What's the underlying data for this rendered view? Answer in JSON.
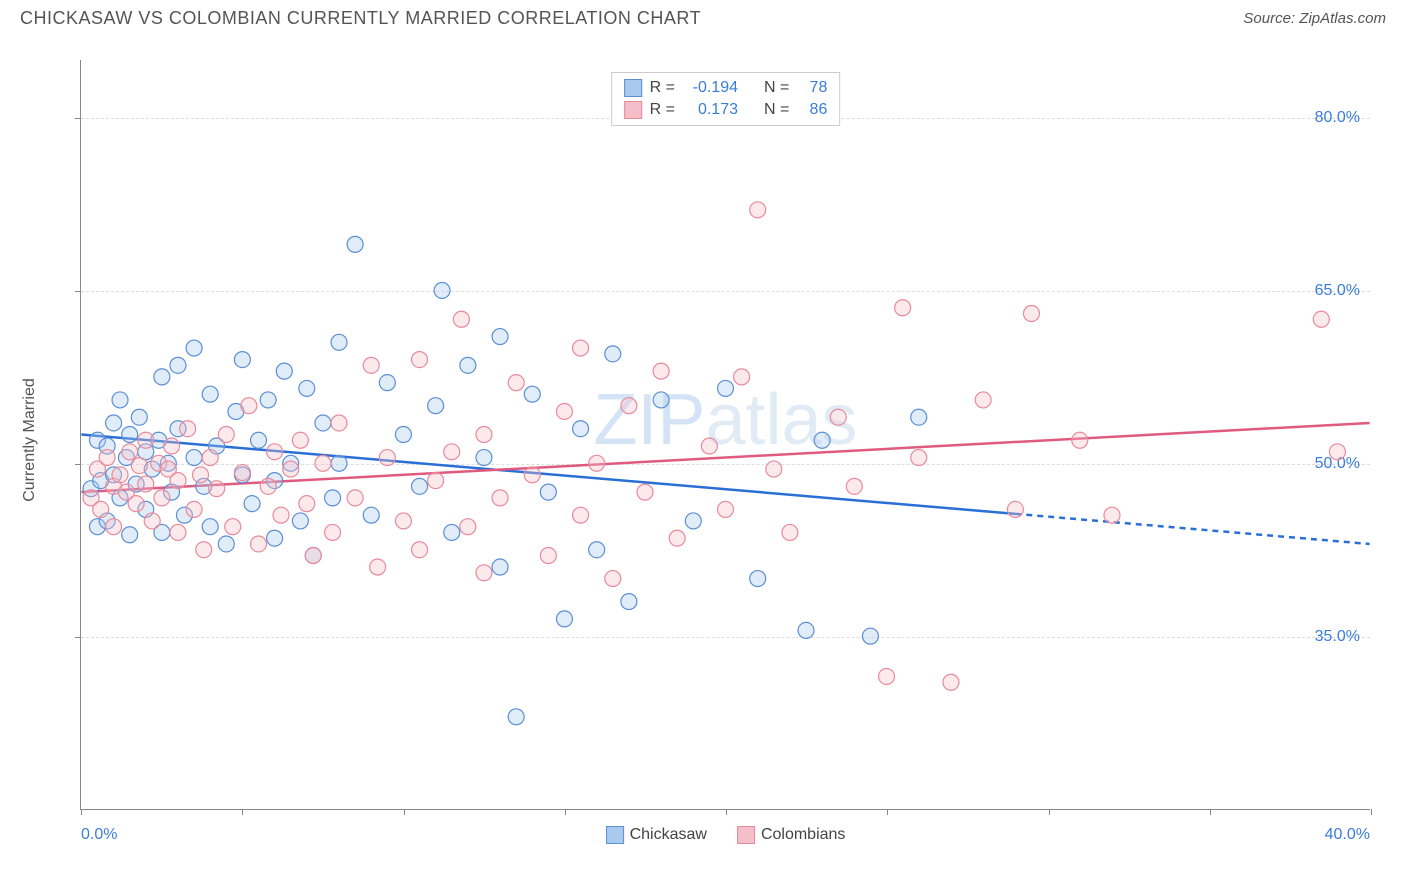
{
  "header": {
    "title": "CHICKASAW VS COLOMBIAN CURRENTLY MARRIED CORRELATION CHART",
    "source_prefix": "Source: ",
    "source_name": "ZipAtlas.com"
  },
  "chart": {
    "type": "scatter",
    "y_axis_title": "Currently Married",
    "x_min_label": "0.0%",
    "x_max_label": "40.0%",
    "xlim": [
      0,
      40
    ],
    "ylim": [
      20,
      85
    ],
    "y_ticks": [
      35.0,
      50.0,
      65.0,
      80.0
    ],
    "y_tick_labels": [
      "35.0%",
      "50.0%",
      "65.0%",
      "80.0%"
    ],
    "x_ticks": [
      0,
      5,
      10,
      15,
      20,
      25,
      30,
      35,
      40
    ],
    "background_color": "#ffffff",
    "grid_color": "#dddddd",
    "axis_color": "#888888",
    "tick_label_color": "#3a7dd8",
    "marker_radius": 8,
    "marker_stroke_width": 1.2,
    "marker_fill_opacity": 0.35,
    "watermark": "ZIPatlas"
  },
  "legend_stats": {
    "series1": {
      "R_label": "R =",
      "R_value": "-0.194",
      "N_label": "N =",
      "N_value": "78"
    },
    "series2": {
      "R_label": "R =",
      "R_value": "0.173",
      "N_label": "N =",
      "N_value": "86"
    }
  },
  "bottom_legend": {
    "series1_label": "Chickasaw",
    "series2_label": "Colombians"
  },
  "series": [
    {
      "name": "Chickasaw",
      "fill": "#a9c9ef",
      "stroke": "#5a8fd6",
      "trend": {
        "color": "#2a6fd6",
        "width": 2.5,
        "y_at_xmin": 52.5,
        "y_at_xmax": 43.0,
        "solid_to_x": 29,
        "dashed": true
      },
      "points": [
        [
          0.3,
          47.8
        ],
        [
          0.5,
          52.0
        ],
        [
          0.5,
          44.5
        ],
        [
          0.6,
          48.5
        ],
        [
          0.8,
          51.5
        ],
        [
          0.8,
          45.0
        ],
        [
          1.0,
          53.5
        ],
        [
          1.0,
          49.0
        ],
        [
          1.2,
          47.0
        ],
        [
          1.2,
          55.5
        ],
        [
          1.4,
          50.5
        ],
        [
          1.5,
          52.5
        ],
        [
          1.5,
          43.8
        ],
        [
          1.7,
          48.2
        ],
        [
          1.8,
          54.0
        ],
        [
          2.0,
          46.0
        ],
        [
          2.0,
          51.0
        ],
        [
          2.2,
          49.5
        ],
        [
          2.4,
          52.0
        ],
        [
          2.5,
          44.0
        ],
        [
          2.5,
          57.5
        ],
        [
          2.7,
          50.0
        ],
        [
          2.8,
          47.5
        ],
        [
          3.0,
          53.0
        ],
        [
          3.0,
          58.5
        ],
        [
          3.2,
          45.5
        ],
        [
          3.5,
          60.0
        ],
        [
          3.5,
          50.5
        ],
        [
          3.8,
          48.0
        ],
        [
          4.0,
          56.0
        ],
        [
          4.0,
          44.5
        ],
        [
          4.2,
          51.5
        ],
        [
          4.5,
          43.0
        ],
        [
          4.8,
          54.5
        ],
        [
          5.0,
          49.0
        ],
        [
          5.0,
          59.0
        ],
        [
          5.3,
          46.5
        ],
        [
          5.5,
          52.0
        ],
        [
          5.8,
          55.5
        ],
        [
          6.0,
          48.5
        ],
        [
          6.0,
          43.5
        ],
        [
          6.3,
          58.0
        ],
        [
          6.5,
          50.0
        ],
        [
          6.8,
          45.0
        ],
        [
          7.0,
          56.5
        ],
        [
          7.2,
          42.0
        ],
        [
          7.5,
          53.5
        ],
        [
          7.8,
          47.0
        ],
        [
          8.0,
          60.5
        ],
        [
          8.0,
          50.0
        ],
        [
          8.5,
          69.0
        ],
        [
          9.0,
          45.5
        ],
        [
          9.5,
          57.0
        ],
        [
          10.0,
          52.5
        ],
        [
          10.5,
          48.0
        ],
        [
          11.0,
          55.0
        ],
        [
          11.2,
          65.0
        ],
        [
          11.5,
          44.0
        ],
        [
          12.0,
          58.5
        ],
        [
          12.5,
          50.5
        ],
        [
          13.0,
          41.0
        ],
        [
          13.0,
          61.0
        ],
        [
          13.5,
          28.0
        ],
        [
          14.0,
          56.0
        ],
        [
          14.5,
          47.5
        ],
        [
          15.0,
          36.5
        ],
        [
          15.5,
          53.0
        ],
        [
          16.0,
          42.5
        ],
        [
          16.5,
          59.5
        ],
        [
          17.0,
          38.0
        ],
        [
          18.0,
          55.5
        ],
        [
          19.0,
          45.0
        ],
        [
          20.0,
          56.5
        ],
        [
          21.0,
          40.0
        ],
        [
          22.5,
          35.5
        ],
        [
          23.0,
          52.0
        ],
        [
          24.5,
          35.0
        ],
        [
          26.0,
          54.0
        ]
      ]
    },
    {
      "name": "Colombians",
      "fill": "#f5bfc9",
      "stroke": "#e88a9b",
      "trend": {
        "color": "#e05a80",
        "width": 2.5,
        "y_at_xmin": 47.5,
        "y_at_xmax": 53.5,
        "solid_to_x": 40,
        "dashed": false
      },
      "points": [
        [
          0.3,
          47.0
        ],
        [
          0.5,
          49.5
        ],
        [
          0.6,
          46.0
        ],
        [
          0.8,
          50.5
        ],
        [
          1.0,
          48.0
        ],
        [
          1.0,
          44.5
        ],
        [
          1.2,
          49.0
        ],
        [
          1.4,
          47.5
        ],
        [
          1.5,
          51.0
        ],
        [
          1.7,
          46.5
        ],
        [
          1.8,
          49.8
        ],
        [
          2.0,
          48.2
        ],
        [
          2.0,
          52.0
        ],
        [
          2.2,
          45.0
        ],
        [
          2.4,
          50.0
        ],
        [
          2.5,
          47.0
        ],
        [
          2.7,
          49.5
        ],
        [
          2.8,
          51.5
        ],
        [
          3.0,
          44.0
        ],
        [
          3.0,
          48.5
        ],
        [
          3.3,
          53.0
        ],
        [
          3.5,
          46.0
        ],
        [
          3.7,
          49.0
        ],
        [
          3.8,
          42.5
        ],
        [
          4.0,
          50.5
        ],
        [
          4.2,
          47.8
        ],
        [
          4.5,
          52.5
        ],
        [
          4.7,
          44.5
        ],
        [
          5.0,
          49.2
        ],
        [
          5.2,
          55.0
        ],
        [
          5.5,
          43.0
        ],
        [
          5.8,
          48.0
        ],
        [
          6.0,
          51.0
        ],
        [
          6.2,
          45.5
        ],
        [
          6.5,
          49.5
        ],
        [
          6.8,
          52.0
        ],
        [
          7.0,
          46.5
        ],
        [
          7.2,
          42.0
        ],
        [
          7.5,
          50.0
        ],
        [
          7.8,
          44.0
        ],
        [
          8.0,
          53.5
        ],
        [
          8.5,
          47.0
        ],
        [
          9.0,
          58.5
        ],
        [
          9.2,
          41.0
        ],
        [
          9.5,
          50.5
        ],
        [
          10.0,
          45.0
        ],
        [
          10.5,
          59.0
        ],
        [
          10.5,
          42.5
        ],
        [
          11.0,
          48.5
        ],
        [
          11.5,
          51.0
        ],
        [
          11.8,
          62.5
        ],
        [
          12.0,
          44.5
        ],
        [
          12.5,
          40.5
        ],
        [
          12.5,
          52.5
        ],
        [
          13.0,
          47.0
        ],
        [
          13.5,
          57.0
        ],
        [
          14.0,
          49.0
        ],
        [
          14.5,
          42.0
        ],
        [
          15.0,
          54.5
        ],
        [
          15.5,
          45.5
        ],
        [
          15.5,
          60.0
        ],
        [
          16.0,
          50.0
        ],
        [
          16.5,
          40.0
        ],
        [
          17.0,
          55.0
        ],
        [
          17.5,
          47.5
        ],
        [
          18.0,
          58.0
        ],
        [
          18.5,
          43.5
        ],
        [
          19.5,
          51.5
        ],
        [
          20.0,
          46.0
        ],
        [
          20.5,
          57.5
        ],
        [
          21.0,
          72.0
        ],
        [
          21.5,
          49.5
        ],
        [
          22.0,
          44.0
        ],
        [
          23.5,
          54.0
        ],
        [
          24.0,
          48.0
        ],
        [
          25.0,
          31.5
        ],
        [
          25.5,
          63.5
        ],
        [
          26.0,
          50.5
        ],
        [
          27.0,
          31.0
        ],
        [
          28.0,
          55.5
        ],
        [
          29.0,
          46.0
        ],
        [
          29.5,
          63.0
        ],
        [
          31.0,
          52.0
        ],
        [
          32.0,
          45.5
        ],
        [
          38.5,
          62.5
        ],
        [
          39.0,
          51.0
        ]
      ]
    }
  ]
}
